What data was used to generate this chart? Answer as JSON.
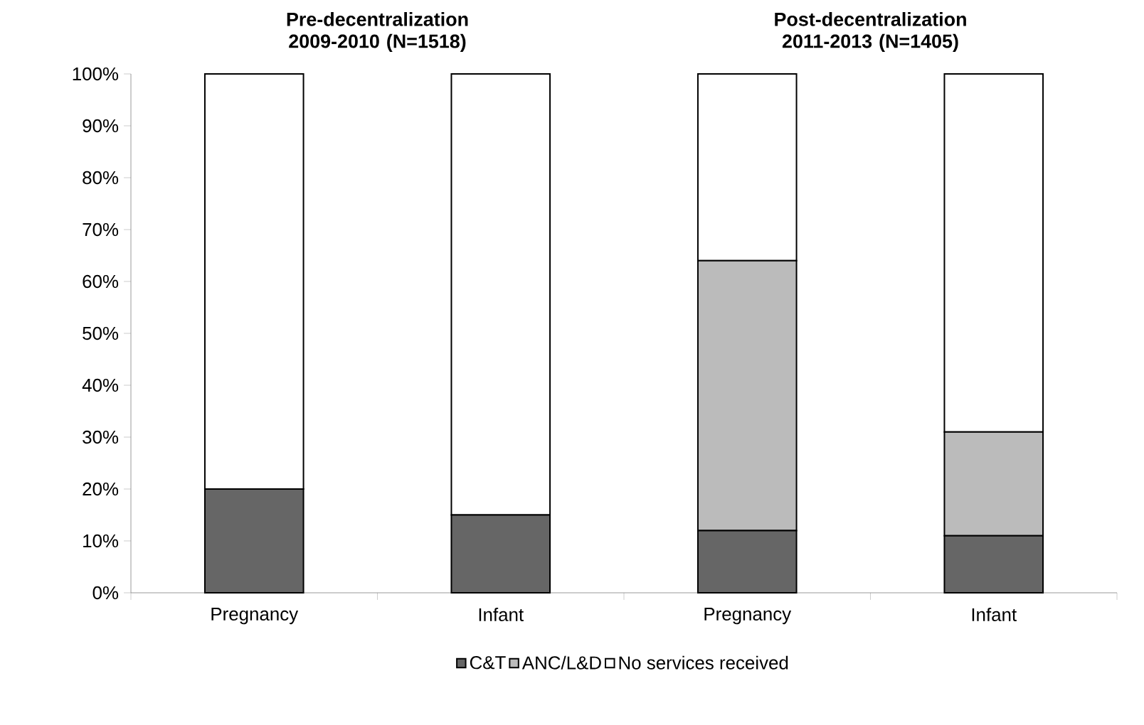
{
  "chart_data": {
    "type": "bar",
    "stacked": true,
    "categories": [
      "Pregnancy",
      "Infant",
      "Pregnancy",
      "Infant"
    ],
    "series": [
      {
        "name": "C&T",
        "color": "#666666",
        "values": [
          20,
          15,
          12,
          11
        ]
      },
      {
        "name": "ANC/L&D",
        "color": "#bbbbbb",
        "values": [
          0,
          0,
          52,
          20
        ]
      },
      {
        "name": "No services received",
        "color": "#ffffff",
        "values": [
          80,
          85,
          36,
          69
        ]
      }
    ],
    "ylim": [
      0,
      100
    ],
    "yticks": [
      {
        "value": 0,
        "label": "0%"
      },
      {
        "value": 10,
        "label": "10%"
      },
      {
        "value": 20,
        "label": "20%"
      },
      {
        "value": 30,
        "label": "30%"
      },
      {
        "value": 40,
        "label": "40%"
      },
      {
        "value": 50,
        "label": "50%"
      },
      {
        "value": 60,
        "label": "60%"
      },
      {
        "value": 70,
        "label": "70%"
      },
      {
        "value": 80,
        "label": "80%"
      },
      {
        "value": 90,
        "label": "90%"
      },
      {
        "value": 100,
        "label": "100%"
      }
    ],
    "annotations": [
      "Pre-decentralization 2009-2010 (N=1518)",
      "Post-decentralization 2011-2013 (N=1405)"
    ],
    "legend": "bottom",
    "grid": false
  }
}
